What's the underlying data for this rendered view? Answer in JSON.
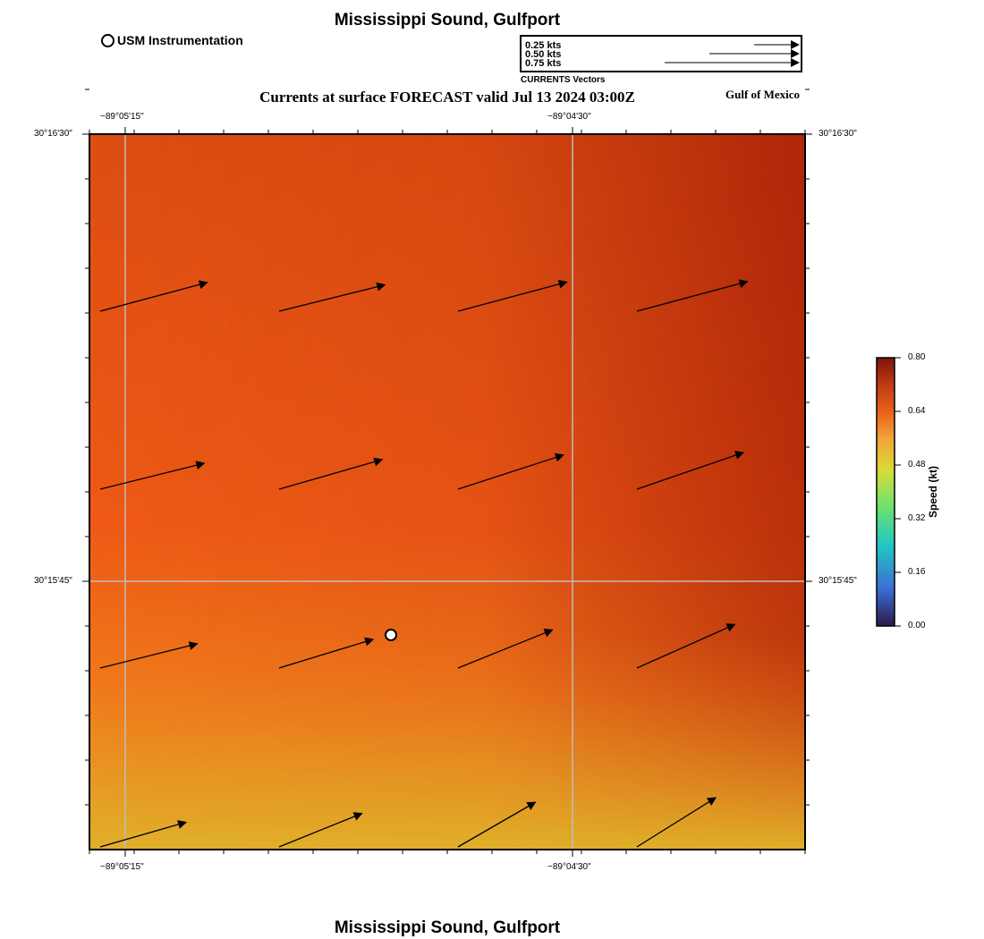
{
  "header": {
    "title": "Mississippi Sound, Gulfport",
    "forecast_title": "Currents at surface FORECAST valid Jul 13 2024 03:00Z",
    "region_label": "Gulf of Mexico"
  },
  "footer": {
    "title": "Mississippi Sound, Gulfport"
  },
  "station_legend": {
    "label": "USM Instrumentation"
  },
  "vector_legend": {
    "rows": [
      {
        "label": "0.25 kts",
        "speed": 0.25
      },
      {
        "label": "0.50 kts",
        "speed": 0.5
      },
      {
        "label": "0.75 kts",
        "speed": 0.75
      }
    ],
    "caption": "CURRENTS Vectors"
  },
  "axes": {
    "lon_labels": [
      "−89°05'15\"",
      "−89°04'30\""
    ],
    "lat_labels": [
      "30°16'30\"",
      "30°15'45\""
    ]
  },
  "colorbar": {
    "title": "Speed (kt)",
    "ticks": [
      "0.80",
      "0.64",
      "0.48",
      "0.32",
      "0.16",
      "0.00"
    ],
    "colors": [
      "#2c1a4a",
      "#3a6fd6",
      "#22c6c2",
      "#6ee36a",
      "#d9dc3a",
      "#f2a23a",
      "#e8611a",
      "#c03a12",
      "#7a150a"
    ]
  },
  "field": {
    "colors": {
      "upper_left": "#dd4e12",
      "mid_left": "#ee5a16",
      "lower_left": "#f07a1c",
      "bottom": "#e0b02a",
      "right_dark": "#a92208"
    }
  },
  "station": {
    "name": "USM Instrumentation"
  },
  "vectors": [
    {
      "dir": 15,
      "speed": 0.62
    },
    {
      "dir": 14,
      "speed": 0.61
    },
    {
      "dir": 15,
      "speed": 0.63
    },
    {
      "dir": 15,
      "speed": 0.64
    },
    {
      "dir": 14,
      "speed": 0.6
    },
    {
      "dir": 16,
      "speed": 0.6
    },
    {
      "dir": 18,
      "speed": 0.62
    },
    {
      "dir": 19,
      "speed": 0.63
    },
    {
      "dir": 14,
      "speed": 0.56
    },
    {
      "dir": 17,
      "speed": 0.55
    },
    {
      "dir": 22,
      "speed": 0.57
    },
    {
      "dir": 24,
      "speed": 0.6
    },
    {
      "dir": 16,
      "speed": 0.5
    },
    {
      "dir": 22,
      "speed": 0.5
    },
    {
      "dir": 30,
      "speed": 0.5
    },
    {
      "dir": 32,
      "speed": 0.52
    }
  ]
}
